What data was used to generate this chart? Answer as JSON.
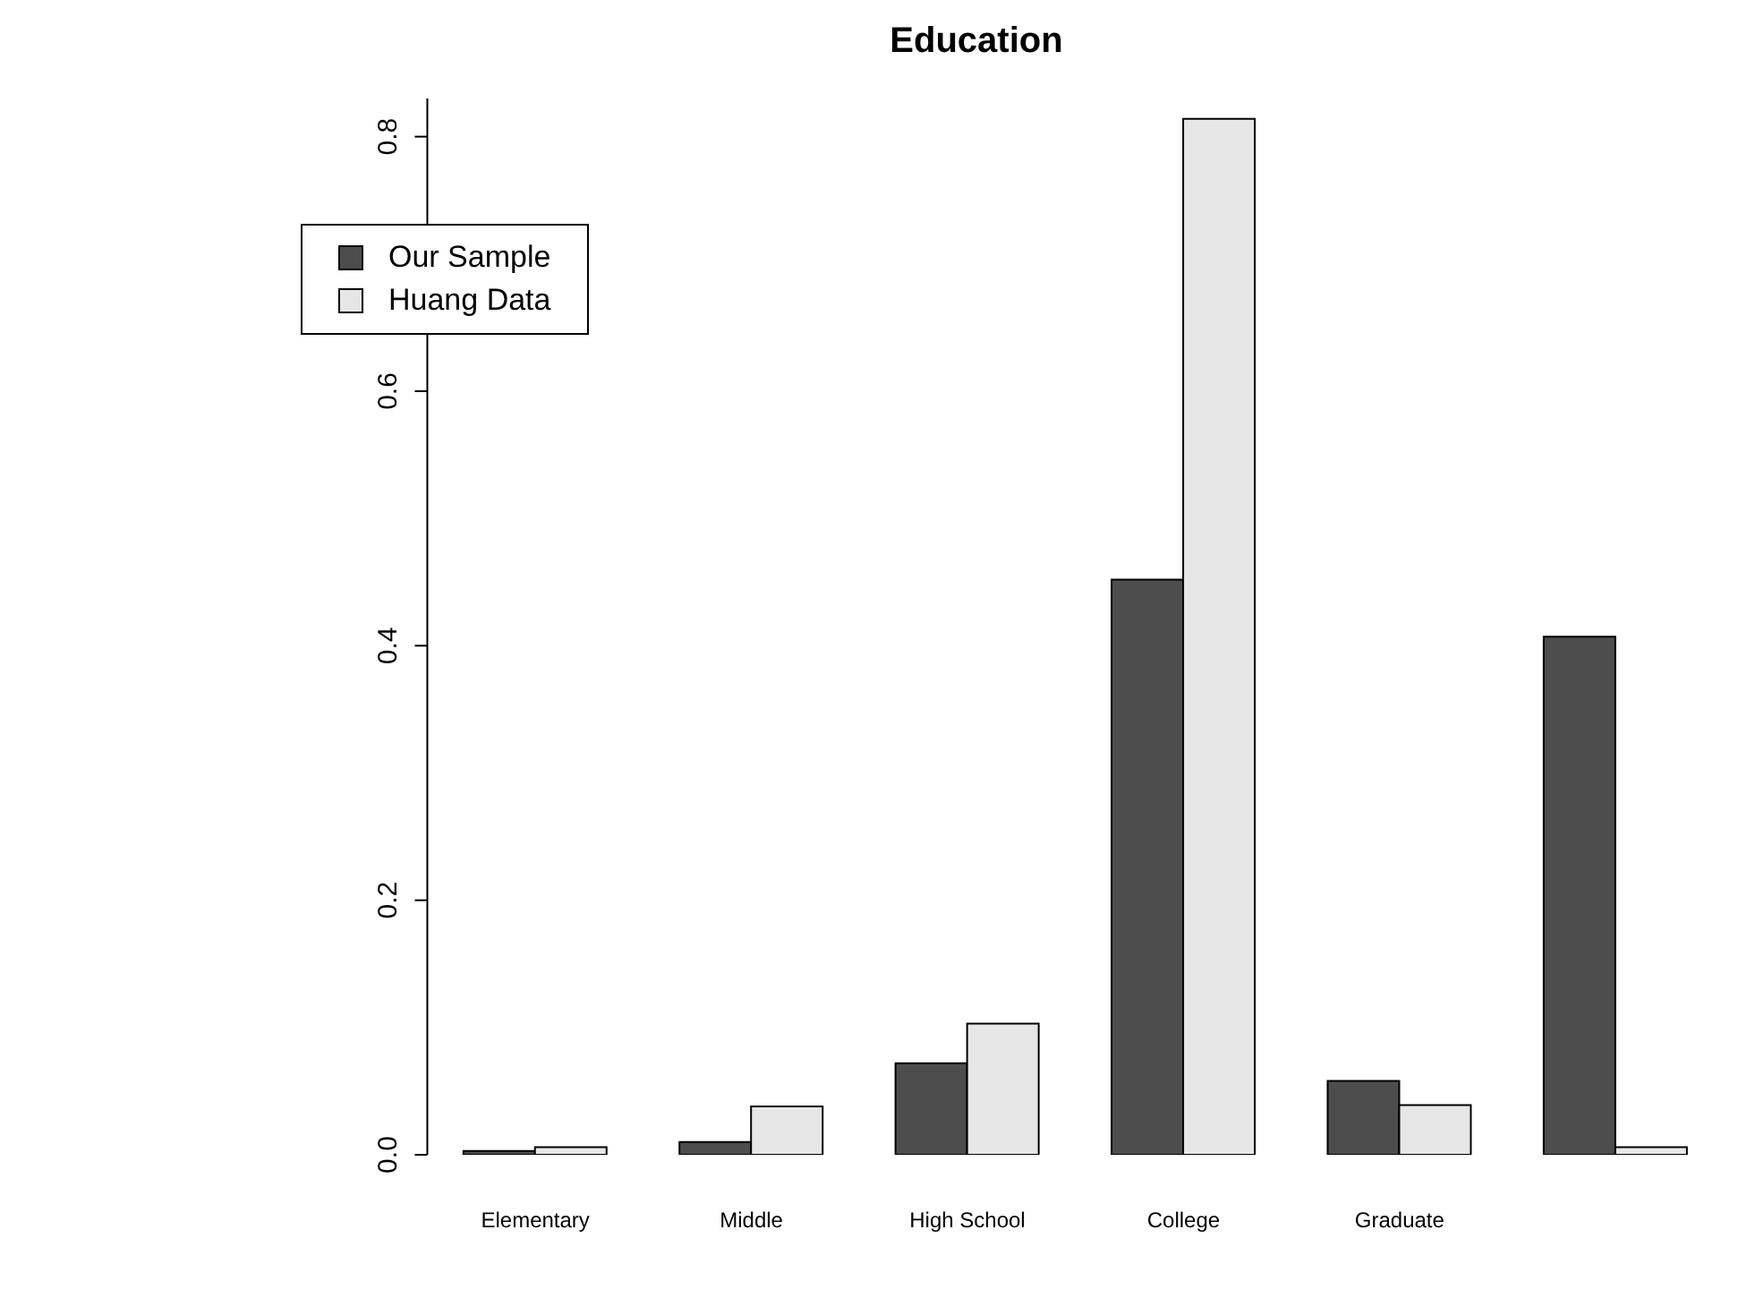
{
  "chart_data": {
    "type": "bar",
    "title": "Education",
    "categories": [
      "Elementary",
      "Middle",
      "High School",
      "College",
      "Graduate",
      null
    ],
    "series": [
      {
        "name": "Our Sample",
        "color": "#4d4d4d",
        "values": [
          0.003,
          0.01,
          0.072,
          0.452,
          0.058,
          0.407
        ]
      },
      {
        "name": "Huang Data",
        "color": "#e6e6e6",
        "values": [
          0.006,
          0.038,
          0.103,
          0.814,
          0.039,
          0.006
        ]
      }
    ],
    "ylim": [
      0,
      0.83
    ],
    "yticks": [
      {
        "value": 0,
        "label": "0.0"
      },
      0.2,
      0.4,
      0.6,
      0.8
    ],
    "grid": false,
    "legend": "top left"
  }
}
